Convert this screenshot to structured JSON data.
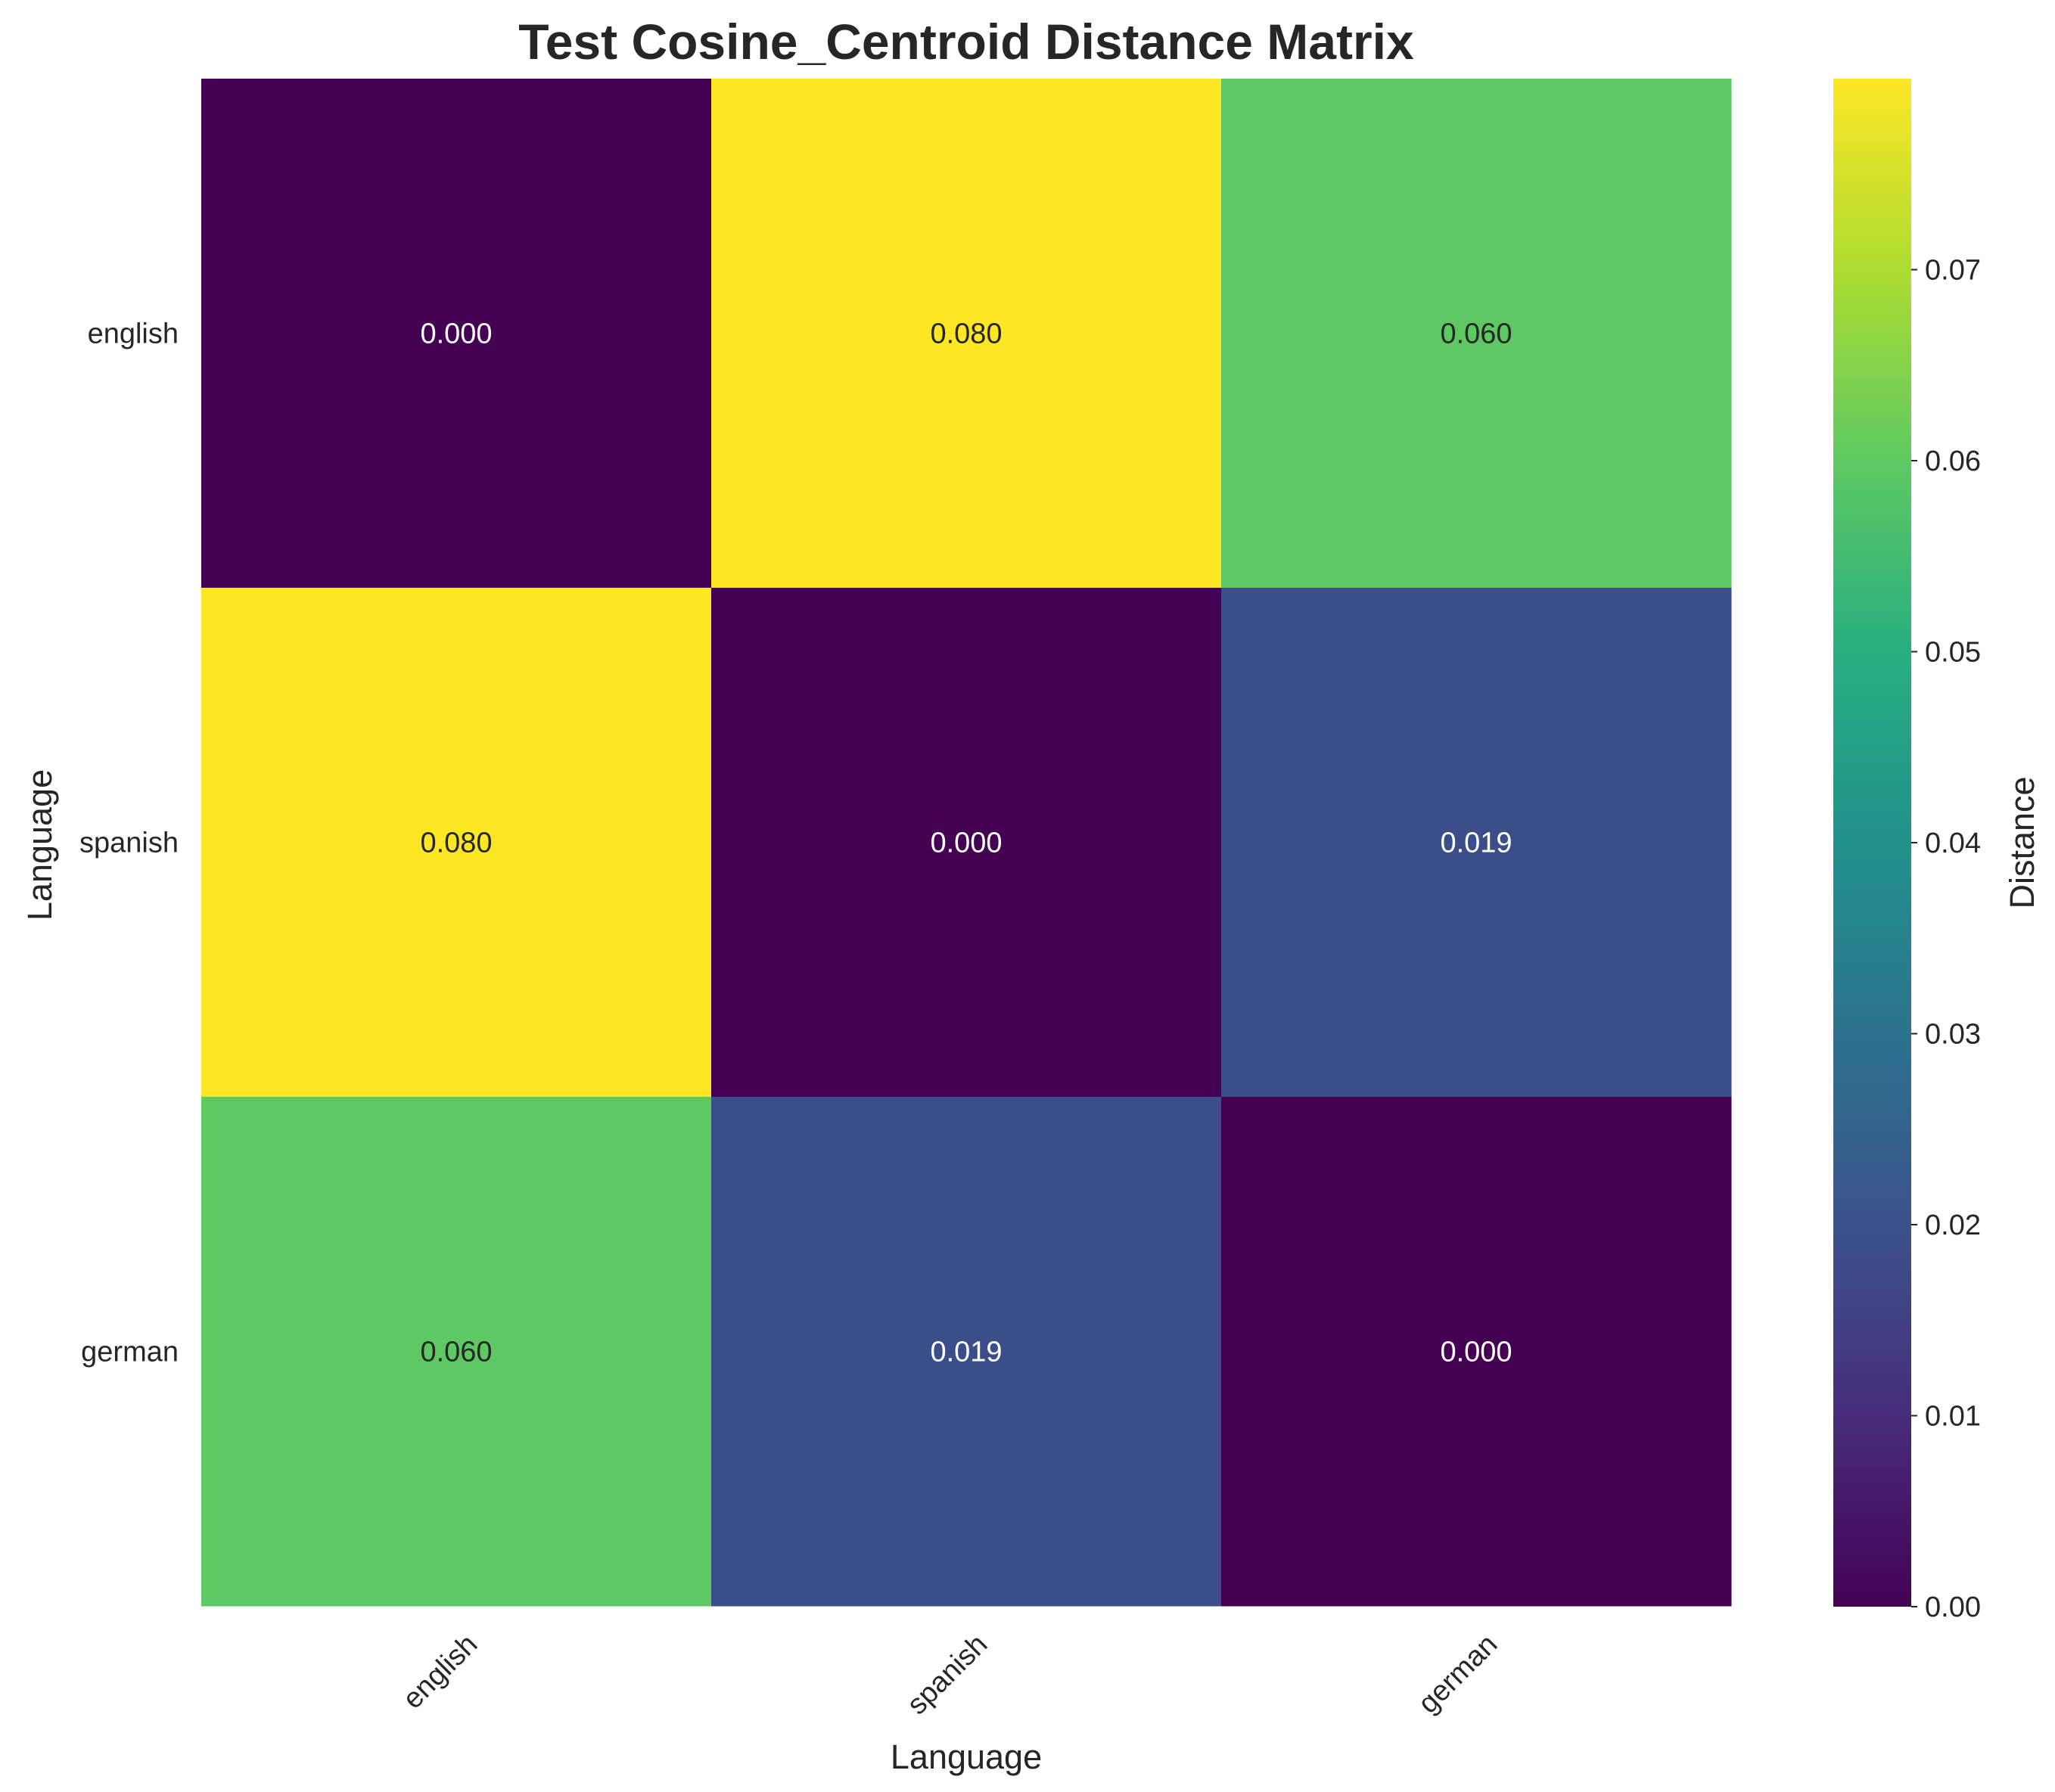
{
  "chart_data": {
    "type": "heatmap",
    "title": "Test Cosine_Centroid Distance Matrix",
    "xlabel": "Language",
    "ylabel": "Language",
    "x_categories": [
      "english",
      "spanish",
      "german"
    ],
    "y_categories": [
      "english",
      "spanish",
      "german"
    ],
    "values": [
      [
        0.0,
        0.08,
        0.06
      ],
      [
        0.08,
        0.0,
        0.019
      ],
      [
        0.06,
        0.019,
        0.0
      ]
    ],
    "value_labels": [
      [
        "0.000",
        "0.080",
        "0.060"
      ],
      [
        "0.080",
        "0.000",
        "0.019"
      ],
      [
        "0.060",
        "0.019",
        "0.000"
      ]
    ],
    "colormap": "viridis",
    "colorbar": {
      "label": "Distance",
      "range": [
        0.0,
        0.08
      ],
      "ticks": [
        0.0,
        0.01,
        0.02,
        0.03,
        0.04,
        0.05,
        0.06,
        0.07
      ],
      "tick_labels": [
        "0.00",
        "0.01",
        "0.02",
        "0.03",
        "0.04",
        "0.05",
        "0.06",
        "0.07"
      ]
    }
  }
}
